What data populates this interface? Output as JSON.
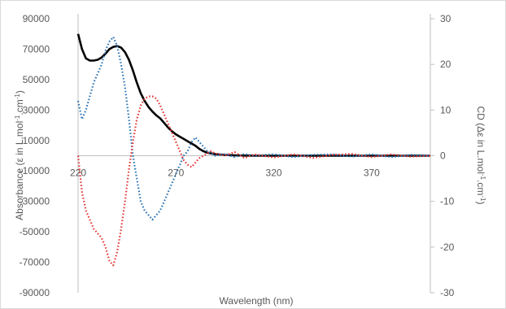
{
  "chart_data": {
    "type": "line",
    "title": "",
    "xlabel": "Wavelength (nm)",
    "ylabel_left_parts": [
      "Absorbance (ε in L.mol",
      "-1",
      ".cm",
      "-1",
      ")"
    ],
    "ylabel_right_parts": [
      "CD (Δε in L.mol",
      "-1",
      ".cm",
      "-1",
      ")"
    ],
    "xlim": [
      220,
      400
    ],
    "ylim_left": [
      -90000,
      90000
    ],
    "ylim_right": [
      -30,
      30
    ],
    "x_ticks": [
      220,
      270,
      320,
      370
    ],
    "x_tick_labels": [
      "220",
      "270",
      "320",
      "370"
    ],
    "y_left_ticks": [
      90000,
      70000,
      50000,
      30000,
      10000,
      -10000,
      -30000,
      -50000,
      -70000,
      -90000
    ],
    "y_left_tick_labels": [
      "90000",
      "70000",
      "50000",
      "30000",
      "10000",
      "-10000",
      "-30000",
      "-50000",
      "-70000",
      "-90000"
    ],
    "y_right_ticks": [
      30,
      20,
      10,
      0,
      -10,
      -20,
      -30
    ],
    "y_right_tick_labels": [
      "30",
      "20",
      "10",
      "0",
      "-10",
      "-20",
      "-30"
    ],
    "grid": false,
    "legend": "none",
    "series": [
      {
        "axis": "left",
        "color": "#000000",
        "style": "solid",
        "x": [
          220,
          222,
          224,
          226,
          228,
          230,
          232,
          234,
          236,
          238,
          240,
          242,
          244,
          246,
          248,
          250,
          252,
          254,
          256,
          258,
          260,
          262,
          264,
          266,
          268,
          270,
          272,
          274,
          276,
          278,
          280,
          282,
          284,
          286,
          288,
          290,
          295,
          300,
          310,
          320,
          330,
          340,
          350,
          360,
          370,
          380,
          390,
          400
        ],
        "values": [
          80000,
          70000,
          64000,
          62500,
          62500,
          63000,
          64500,
          67000,
          70000,
          71500,
          72000,
          71000,
          68000,
          63000,
          56000,
          48000,
          41000,
          36000,
          32000,
          29000,
          26500,
          24500,
          21500,
          18500,
          16000,
          14000,
          12500,
          11000,
          9500,
          8000,
          6500,
          4500,
          3000,
          2000,
          1500,
          1000,
          500,
          200,
          0,
          0,
          0,
          0,
          0,
          0,
          0,
          0,
          0,
          0
        ]
      },
      {
        "axis": "right",
        "color": "#2e75b6",
        "style": "dotted",
        "x": [
          220,
          222,
          224,
          226,
          228,
          230,
          232,
          234,
          236,
          238,
          240,
          242,
          244,
          246,
          248,
          250,
          252,
          254,
          256,
          258,
          260,
          262,
          264,
          266,
          268,
          270,
          272,
          274,
          276,
          278,
          280,
          282,
          284,
          286,
          288,
          290,
          295,
          300,
          305,
          310,
          320,
          330,
          340,
          350,
          360,
          370,
          380,
          390,
          400
        ],
        "values": [
          12,
          8,
          10,
          13,
          16,
          18,
          20,
          23,
          25,
          26,
          24,
          20,
          15,
          8,
          0,
          -5,
          -10,
          -12,
          -13,
          -14,
          -13,
          -12,
          -10,
          -8,
          -6,
          -4,
          -2,
          0,
          1,
          3,
          4,
          3,
          2,
          1,
          0.5,
          0,
          0.3,
          -0.3,
          0.4,
          0,
          0.3,
          -0.3,
          0.2,
          0.3,
          -0.2,
          0.3,
          -0.3,
          0.2,
          0
        ]
      },
      {
        "axis": "right",
        "color": "#e23b3b",
        "style": "dotted",
        "x": [
          220,
          222,
          224,
          226,
          228,
          230,
          232,
          234,
          236,
          238,
          240,
          242,
          244,
          246,
          248,
          250,
          252,
          254,
          256,
          258,
          260,
          262,
          264,
          266,
          268,
          270,
          272,
          274,
          276,
          278,
          280,
          282,
          284,
          286,
          288,
          290,
          295,
          300,
          305,
          310,
          320,
          330,
          340,
          350,
          360,
          370,
          380,
          390,
          400
        ],
        "values": [
          0,
          -8,
          -12,
          -14,
          -16,
          -17,
          -18,
          -20,
          -23,
          -24,
          -21,
          -16,
          -10,
          -3,
          3,
          8,
          11,
          12.5,
          13,
          13,
          12.5,
          11,
          9,
          7,
          5,
          3,
          1,
          -1,
          -2,
          -2.5,
          -1.5,
          -0.5,
          0,
          0.5,
          1,
          0.5,
          0,
          0.8,
          -0.5,
          0.3,
          -0.4,
          0.3,
          -0.5,
          0.2,
          0.4,
          -0.3,
          0.3,
          -0.2,
          0
        ]
      }
    ]
  }
}
